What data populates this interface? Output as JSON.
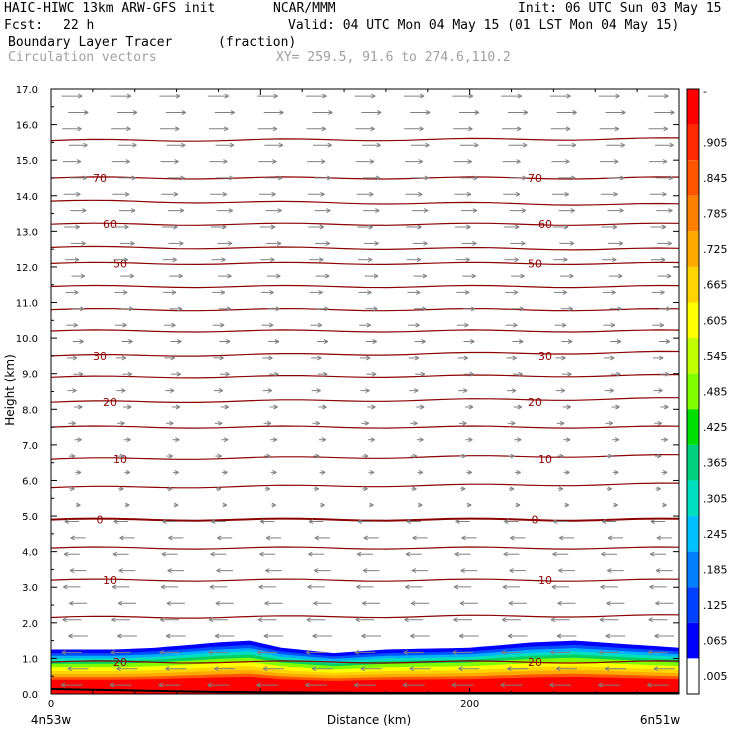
{
  "header": {
    "model": "HAIC-HIWC 13km ARW-GFS init",
    "org": "NCAR/MMM",
    "init": "Init: 06 UTC Sun 03 May 15",
    "fcst_label": "Fcst:",
    "fcst_value": "22 h",
    "valid": "Valid: 04 UTC Mon 04 May 15 (01 LST Mon 04 May 15)",
    "field_name": "Boundary Layer Tracer",
    "field_units": "(fraction)",
    "vector_label": "Circulation vectors",
    "xy_label": "XY= 259.5, 91.6 to 274.6,110.2"
  },
  "colors": {
    "contour": "#8b0000",
    "vector": "#808080",
    "frame": "#000000"
  },
  "chart_data": {
    "type": "heatmap",
    "xlabel": "Distance (km)",
    "ylabel": "Height (km)",
    "xlim": [
      0,
      300
    ],
    "ylim": [
      0,
      17
    ],
    "y_ticks": [
      "0.0",
      "1.0",
      "2.0",
      "3.0",
      "4.0",
      "5.0",
      "6.0",
      "7.0",
      "8.0",
      "9.0",
      "10.0",
      "11.0",
      "12.0",
      "13.0",
      "14.0",
      "15.0",
      "16.0",
      "17.0"
    ],
    "x_ticks": [
      {
        "x": 0,
        "label": "0"
      },
      {
        "x": 200,
        "label": "200"
      }
    ],
    "x_left_end": "4n53w",
    "x_right_end": "6n51w",
    "colorbar_labels": [
      "-",
      ".905",
      ".845",
      ".785",
      ".725",
      ".665",
      ".605",
      ".545",
      ".485",
      ".425",
      ".365",
      ".305",
      ".245",
      ".185",
      ".125",
      ".065",
      ".005"
    ],
    "colorbar_colors": [
      "#ff0000",
      "#ff2a00",
      "#ff5500",
      "#ff7f00",
      "#ffaa00",
      "#ffd400",
      "#ffff00",
      "#bfff00",
      "#80ff00",
      "#00e000",
      "#00d080",
      "#00e0c0",
      "#00c0ff",
      "#0080ff",
      "#0040ff",
      "#0000ff",
      "#ffffff"
    ],
    "tracer_top_km": [
      [
        0,
        1.25
      ],
      [
        30,
        1.25
      ],
      [
        50,
        1.3
      ],
      [
        80,
        1.45
      ],
      [
        95,
        1.5
      ],
      [
        110,
        1.3
      ],
      [
        135,
        1.15
      ],
      [
        160,
        1.25
      ],
      [
        200,
        1.3
      ],
      [
        230,
        1.45
      ],
      [
        250,
        1.5
      ],
      [
        275,
        1.4
      ],
      [
        300,
        1.3
      ]
    ],
    "isotherms": [
      {
        "label": "70",
        "y": [
          14.5,
          14.5
        ]
      },
      {
        "label": "60",
        "y": [
          13.2,
          13.2
        ]
      },
      {
        "label": "50",
        "y": [
          12.1,
          12.1
        ]
      },
      {
        "label": "30",
        "y": [
          9.5,
          9.6
        ]
      },
      {
        "label": "20",
        "y": [
          8.2,
          8.3
        ]
      },
      {
        "label": "10",
        "y": [
          6.6,
          6.7
        ]
      },
      {
        "label": "0",
        "y": [
          4.9,
          4.9
        ]
      },
      {
        "label": "10",
        "y": [
          3.2,
          3.2
        ]
      },
      {
        "label": "20",
        "y": [
          0.9,
          0.9
        ]
      }
    ],
    "unlabeled_contours": [
      {
        "y": [
          15.55,
          15.6
        ]
      },
      {
        "y": [
          13.85,
          13.75
        ]
      },
      {
        "y": [
          12.55,
          12.5
        ]
      },
      {
        "y": [
          11.45,
          11.45
        ]
      },
      {
        "y": [
          10.8,
          10.8
        ]
      },
      {
        "y": [
          10.2,
          10.2
        ]
      },
      {
        "y": [
          8.9,
          8.95
        ]
      },
      {
        "y": [
          7.5,
          7.5
        ]
      },
      {
        "y": [
          5.8,
          5.9
        ]
      },
      {
        "y": [
          4.1,
          4.1
        ]
      },
      {
        "y": [
          2.15,
          2.2
        ]
      }
    ],
    "wind_direction_change_km": 5.0
  }
}
